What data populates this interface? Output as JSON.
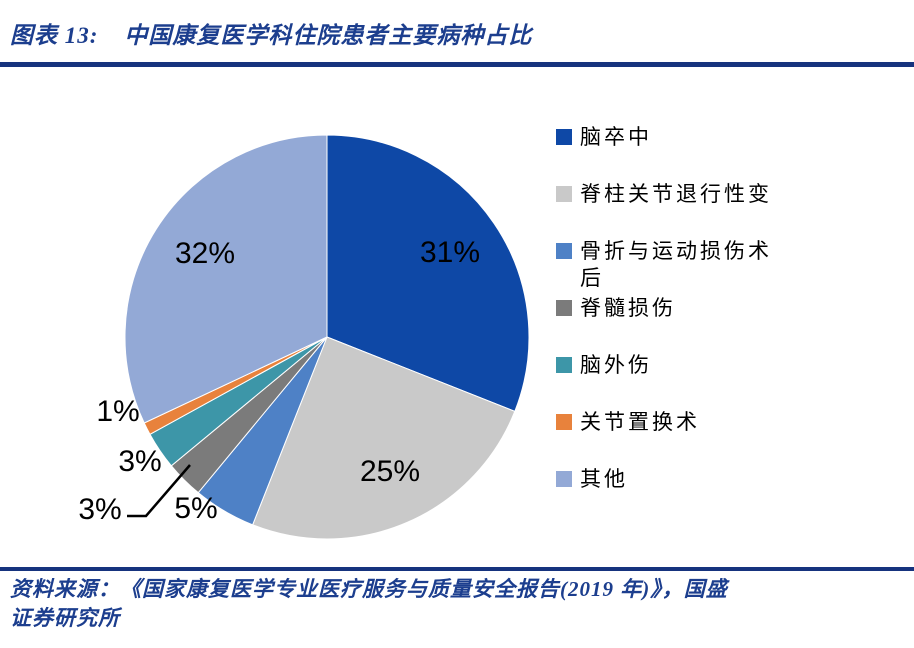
{
  "figure": {
    "label": "图表 13:",
    "title": "中国康复医学科住院患者主要病种占比"
  },
  "chart_data": {
    "type": "pie",
    "title": "中国康复医学科住院患者主要病种占比",
    "start_angle_deg": 0,
    "direction": "clockwise",
    "legend_position": "right",
    "label_format": "percent",
    "slices": [
      {
        "name": "脑卒中",
        "value": 31,
        "color": "#0E48A6",
        "label": "31%"
      },
      {
        "name": "脊柱关节退行性变",
        "value": 25,
        "color": "#C9C9C9",
        "label": "25%"
      },
      {
        "name": "骨折与运动损伤术后",
        "value": 5,
        "color": "#4E81C6",
        "label": "5%"
      },
      {
        "name": "脊髓损伤",
        "value": 3,
        "color": "#7B7B7B",
        "label": "3%"
      },
      {
        "name": "脑外伤",
        "value": 3,
        "color": "#3D96A8",
        "label": "3%"
      },
      {
        "name": "关节置换术",
        "value": 1,
        "color": "#E8823C",
        "label": "1%"
      },
      {
        "name": "其他",
        "value": 32,
        "color": "#93A9D6",
        "label": "32%"
      }
    ]
  },
  "source": {
    "lines": [
      "资料来源：《国家康复医学专业医疗服务与质量安全报告(2019 年)》，国盛",
      "证券研究所"
    ]
  },
  "colors": {
    "accent_navy_text": "#1C3E8E",
    "accent_navy_rule": "#16337E",
    "leader_line": "#000000"
  }
}
